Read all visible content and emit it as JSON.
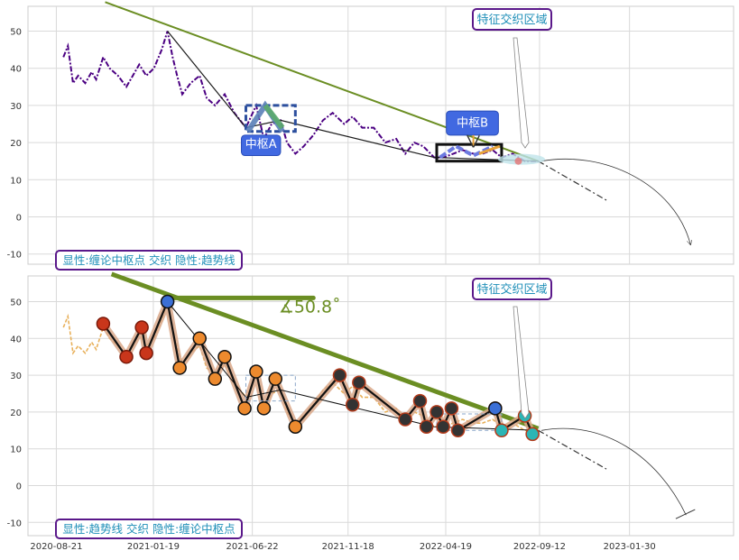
{
  "chart_data": [
    {
      "type": "line",
      "panel": "upper",
      "ylim": [
        -13,
        57
      ],
      "y_ticks": [
        -10,
        0,
        10,
        20,
        30,
        40,
        50
      ],
      "x_range": [
        "2020-08-12",
        "2023-05-20"
      ],
      "grid": true,
      "series": [
        {
          "values": [
            [
              "2020-09-01",
              43
            ],
            [
              "2020-09-08",
              46
            ],
            [
              "2020-09-16",
              36
            ],
            [
              "2020-09-24",
              38
            ],
            [
              "2020-10-05",
              36
            ],
            [
              "2020-10-15",
              39
            ],
            [
              "2020-10-22",
              37
            ],
            [
              "2020-11-02",
              43
            ],
            [
              "2020-11-12",
              40
            ],
            [
              "2020-11-25",
              38
            ],
            [
              "2020-12-08",
              35
            ],
            [
              "2020-12-18",
              38
            ],
            [
              "2020-12-28",
              41
            ],
            [
              "2021-01-08",
              38
            ],
            [
              "2021-01-20",
              40
            ],
            [
              "2021-02-01",
              45
            ],
            [
              "2021-02-10",
              50
            ],
            [
              "2021-02-18",
              43
            ],
            [
              "2021-02-25",
              38
            ],
            [
              "2021-03-05",
              33
            ],
            [
              "2021-03-18",
              36
            ],
            [
              "2021-04-01",
              38
            ],
            [
              "2021-04-12",
              32
            ],
            [
              "2021-04-25",
              30
            ],
            [
              "2021-05-10",
              33
            ],
            [
              "2021-05-25",
              28
            ],
            [
              "2021-06-12",
              24
            ],
            [
              "2021-06-28",
              30
            ],
            [
              "2021-07-10",
              21
            ],
            [
              "2021-07-22",
              25
            ],
            [
              "2021-08-05",
              26
            ],
            [
              "2021-08-15",
              20
            ],
            [
              "2021-08-28",
              17
            ],
            [
              "2021-09-10",
              19
            ],
            [
              "2021-09-25",
              22
            ],
            [
              "2021-10-10",
              26
            ],
            [
              "2021-10-25",
              28
            ],
            [
              "2021-11-12",
              25
            ],
            [
              "2021-11-25",
              27
            ],
            [
              "2021-12-10",
              24
            ],
            [
              "2021-12-28",
              24
            ],
            [
              "2022-01-15",
              20
            ],
            [
              "2022-02-01",
              21
            ],
            [
              "2022-02-15",
              17
            ],
            [
              "2022-03-01",
              20
            ],
            [
              "2022-03-15",
              19
            ],
            [
              "2022-04-01",
              16
            ],
            [
              "2022-04-15",
              16
            ],
            [
              "2022-05-01",
              17
            ],
            [
              "2022-05-15",
              18
            ],
            [
              "2022-06-01",
              17
            ],
            [
              "2022-06-15",
              17
            ],
            [
              "2022-07-01",
              18
            ],
            [
              "2022-07-15",
              16
            ],
            [
              "2022-08-01",
              17
            ],
            [
              "2022-08-20",
              15
            ],
            [
              "2022-09-10",
              15
            ]
          ]
        }
      ],
      "annotations": [
        {
          "text": "中枢A"
        },
        {
          "text": "中枢B"
        },
        {
          "text": "特征交织区域"
        },
        {
          "text": "显性:缠论中枢点 交织 隐性:趋势线"
        }
      ]
    },
    {
      "type": "line",
      "panel": "lower",
      "ylim": [
        -13,
        57
      ],
      "y_ticks": [
        -10,
        0,
        10,
        20,
        30,
        40,
        50
      ],
      "x_ticks": [
        "2020-08-21",
        "2021-01-19",
        "2021-06-22",
        "2021-11-18",
        "2022-04-19",
        "2022-09-12",
        "2023-01-30"
      ],
      "x_range": [
        "2020-08-12",
        "2023-05-20"
      ],
      "grid": true,
      "turning_points": [
        [
          "2020-11-02",
          44
        ],
        [
          "2020-12-08",
          35
        ],
        [
          "2021-01-01",
          43
        ],
        [
          "2021-01-08",
          36
        ],
        [
          "2021-02-10",
          50
        ],
        [
          "2021-03-01",
          32
        ],
        [
          "2021-04-01",
          40
        ],
        [
          "2021-04-25",
          29
        ],
        [
          "2021-05-10",
          35
        ],
        [
          "2021-06-10",
          21
        ],
        [
          "2021-06-28",
          31
        ],
        [
          "2021-07-10",
          21
        ],
        [
          "2021-07-28",
          29
        ],
        [
          "2021-08-28",
          16
        ],
        [
          "2021-11-05",
          30
        ],
        [
          "2021-11-25",
          22
        ],
        [
          "2021-12-05",
          28
        ],
        [
          "2022-02-15",
          18
        ],
        [
          "2022-03-10",
          23
        ],
        [
          "2022-03-20",
          16
        ],
        [
          "2022-04-05",
          20
        ],
        [
          "2022-04-15",
          16
        ],
        [
          "2022-04-28",
          21
        ],
        [
          "2022-05-08",
          15
        ],
        [
          "2022-07-05",
          21
        ],
        [
          "2022-07-15",
          15
        ],
        [
          "2022-08-20",
          19
        ],
        [
          "2022-09-01",
          14
        ]
      ],
      "angle_label": "∡50.8˚",
      "annotations": [
        {
          "text": "特征交织区域"
        },
        {
          "text": "显性:趋势线 交织 隐性:缠论中枢点"
        }
      ]
    }
  ],
  "colors": {
    "price_line": "#4b0082",
    "trend_green": "#6b8e23",
    "box_blue": "#2c4f9e",
    "label_bg": "#4169e1",
    "orange_marker": "#ed8a2e",
    "red_marker": "#c9361b",
    "dark_marker": "#333333",
    "teal_marker": "#2bb5b5",
    "annotation_border": "#5a188a",
    "annotation_text": "#1f8fb8"
  }
}
